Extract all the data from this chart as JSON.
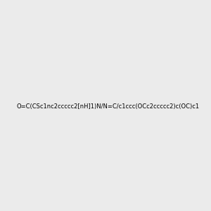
{
  "smiles": "O=C(CSc1nc2ccccc2[nH]1)N/N=C/c1ccc(OCc2ccccc2)c(OC)c1",
  "bg_color": "#ebebeb",
  "img_size": [
    300,
    300
  ]
}
